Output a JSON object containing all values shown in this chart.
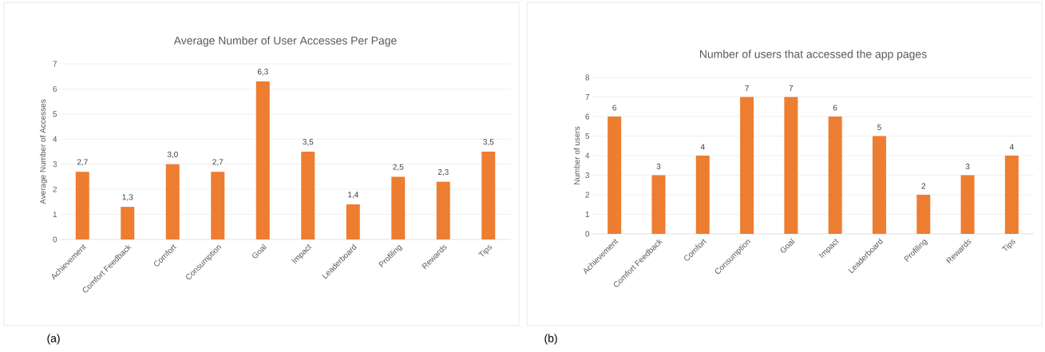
{
  "chart_data": [
    {
      "type": "bar",
      "title": "Average Number of User Accesses Per Page",
      "ylabel": "Average Number of Accesses",
      "categories": [
        "Achievement",
        "Comfort Feedback",
        "Comfort",
        "Consumption",
        "Goal",
        "Impact",
        "Leaderboard",
        "Profiling",
        "Rewards",
        "Tips"
      ],
      "values": [
        2.7,
        1.3,
        3.0,
        2.7,
        6.3,
        3.5,
        1.4,
        2.5,
        2.3,
        3.5
      ],
      "value_labels": [
        "2,7",
        "1,3",
        "3,0",
        "2,7",
        "6,3",
        "3,5",
        "1,4",
        "2,5",
        "2,3",
        "3,5"
      ],
      "color": "#ed7d31",
      "ylim": [
        0,
        7
      ],
      "yticks": [
        0,
        1,
        2,
        3,
        4,
        5,
        6,
        7
      ],
      "grid": "y",
      "annotations": [
        "(a)"
      ]
    },
    {
      "type": "bar",
      "title": "Number of users that accessed the app pages",
      "ylabel": "Number of users",
      "categories": [
        "Achievement",
        "Comfort Feedback",
        "Comfort",
        "Consumption",
        "Goal",
        "Impact",
        "Leaderboard",
        "Profiling",
        "Rewards",
        "Tips"
      ],
      "values": [
        6,
        3,
        4,
        7,
        7,
        6,
        5,
        2,
        3,
        4
      ],
      "value_labels": [
        "6",
        "3",
        "4",
        "7",
        "7",
        "6",
        "5",
        "2",
        "3",
        "4"
      ],
      "color": "#ed7d31",
      "ylim": [
        0,
        8
      ],
      "yticks": [
        0,
        1,
        2,
        3,
        4,
        5,
        6,
        7,
        8
      ],
      "grid": "y",
      "annotations": [
        "(b)"
      ]
    }
  ]
}
